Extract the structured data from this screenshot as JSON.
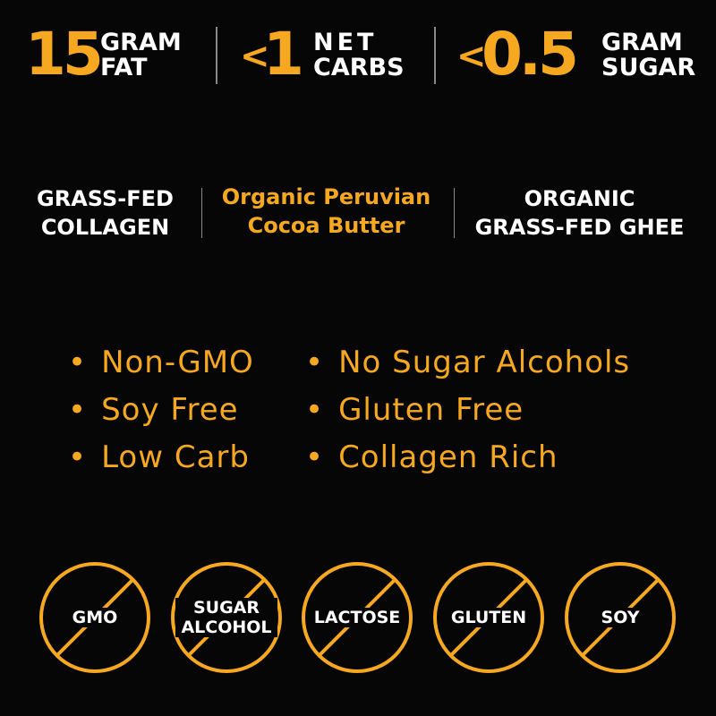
{
  "stats": [
    {
      "prefix": "",
      "value": "15",
      "line1": "GRAM",
      "line2": "FAT"
    },
    {
      "prefix": "<",
      "value": "1",
      "line1": "NET",
      "line2": "CARBS"
    },
    {
      "prefix": "<",
      "value": "0.5",
      "line1": "GRAM",
      "line2": "SUGAR"
    }
  ],
  "ingredients": [
    {
      "line1": "GRASS-FED",
      "line2": "COLLAGEN"
    },
    {
      "line1": "Organic Peruvian",
      "line2": "Cocoa Butter"
    },
    {
      "line1": "ORGANIC",
      "line2": "GRASS-FED GHEE"
    }
  ],
  "features": {
    "left": [
      "Non-GMO",
      "Soy Free",
      "Low Carb"
    ],
    "right": [
      "No Sugar Alcohols",
      "Gluten Free",
      "Collagen Rich"
    ]
  },
  "badges": [
    {
      "icon": "no-gmo-icon",
      "label": "GMO"
    },
    {
      "icon": "no-sugar-alcohol-icon",
      "label": "SUGAR ALCOHOL"
    },
    {
      "icon": "no-lactose-icon",
      "label": "LACTOSE"
    },
    {
      "icon": "no-gluten-icon",
      "label": "GLUTEN"
    },
    {
      "icon": "no-soy-icon",
      "label": "SOY"
    }
  ],
  "colors": {
    "accent": "#f6a821",
    "background": "#060606",
    "text": "#ffffff"
  }
}
